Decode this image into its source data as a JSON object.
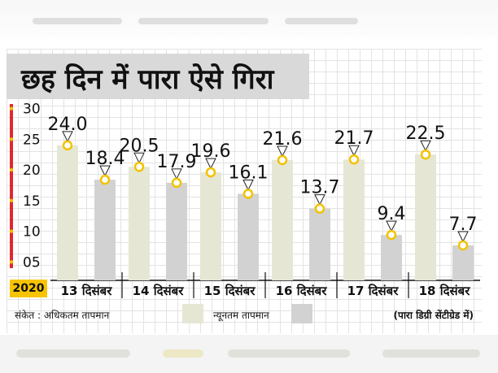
{
  "title": "छह दिन में पारा ऐसे गिरा",
  "year": "2020",
  "legend": {
    "prefix": "संकेत : अधिकतम तापमान",
    "max_label": "अधिकतम तापमान",
    "min_label": "न्यूनतम तापमान",
    "unit_note": "(पारा डिग्री सेंटीग्रेड में)"
  },
  "colors": {
    "max_bar": "#e6e6d4",
    "min_bar": "#d2d2d2",
    "axis_accent": "#e0282f",
    "marker_ring": "#f2c200",
    "year_badge": "#f6c400"
  },
  "chart_data": {
    "type": "bar",
    "categories": [
      "13 दिसंबर",
      "14 दिसंबर",
      "15 दिसंबर",
      "16 दिसंबर",
      "17 दिसंबर",
      "18 दिसंबर"
    ],
    "series": [
      {
        "name": "अधिकतम तापमान",
        "values": [
          24.0,
          20.5,
          19.6,
          21.6,
          21.7,
          22.5
        ],
        "labels": [
          "24.0",
          "20.5",
          "19.6",
          "21.6",
          "21.7",
          "22.5"
        ]
      },
      {
        "name": "न्यूनतम तापमान",
        "values": [
          18.4,
          17.9,
          16.1,
          13.7,
          9.4,
          7.7
        ],
        "labels": [
          "18.4",
          "17.9",
          "16.1",
          "13.7",
          "9.4",
          "7.7"
        ]
      }
    ],
    "yticks": [
      30,
      25,
      20,
      15,
      10,
      5
    ],
    "ytick_labels": [
      "30",
      "25",
      "20",
      "15",
      "10",
      "05"
    ],
    "ylim": [
      2,
      31
    ],
    "xlabel": "",
    "ylabel": "",
    "grid": true
  }
}
